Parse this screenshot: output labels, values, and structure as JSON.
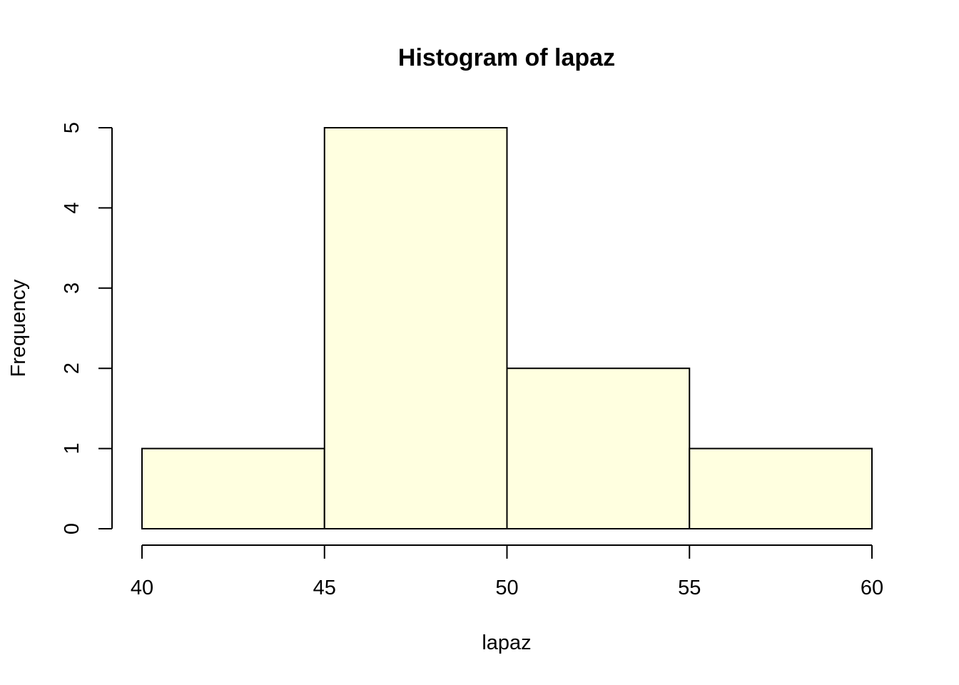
{
  "chart_data": {
    "type": "bar",
    "title": "Histogram of lapaz",
    "xlabel": "lapaz",
    "ylabel": "Frequency",
    "bins": [
      [
        40,
        45
      ],
      [
        45,
        50
      ],
      [
        50,
        55
      ],
      [
        55,
        60
      ]
    ],
    "values": [
      1,
      5,
      2,
      1
    ],
    "xlim": [
      40,
      60
    ],
    "ylim": [
      0,
      5
    ],
    "x_ticks": [
      40,
      45,
      50,
      55,
      60
    ],
    "y_ticks": [
      0,
      1,
      2,
      3,
      4,
      5
    ],
    "bar_color": "#FFFFE0",
    "grid": false
  }
}
